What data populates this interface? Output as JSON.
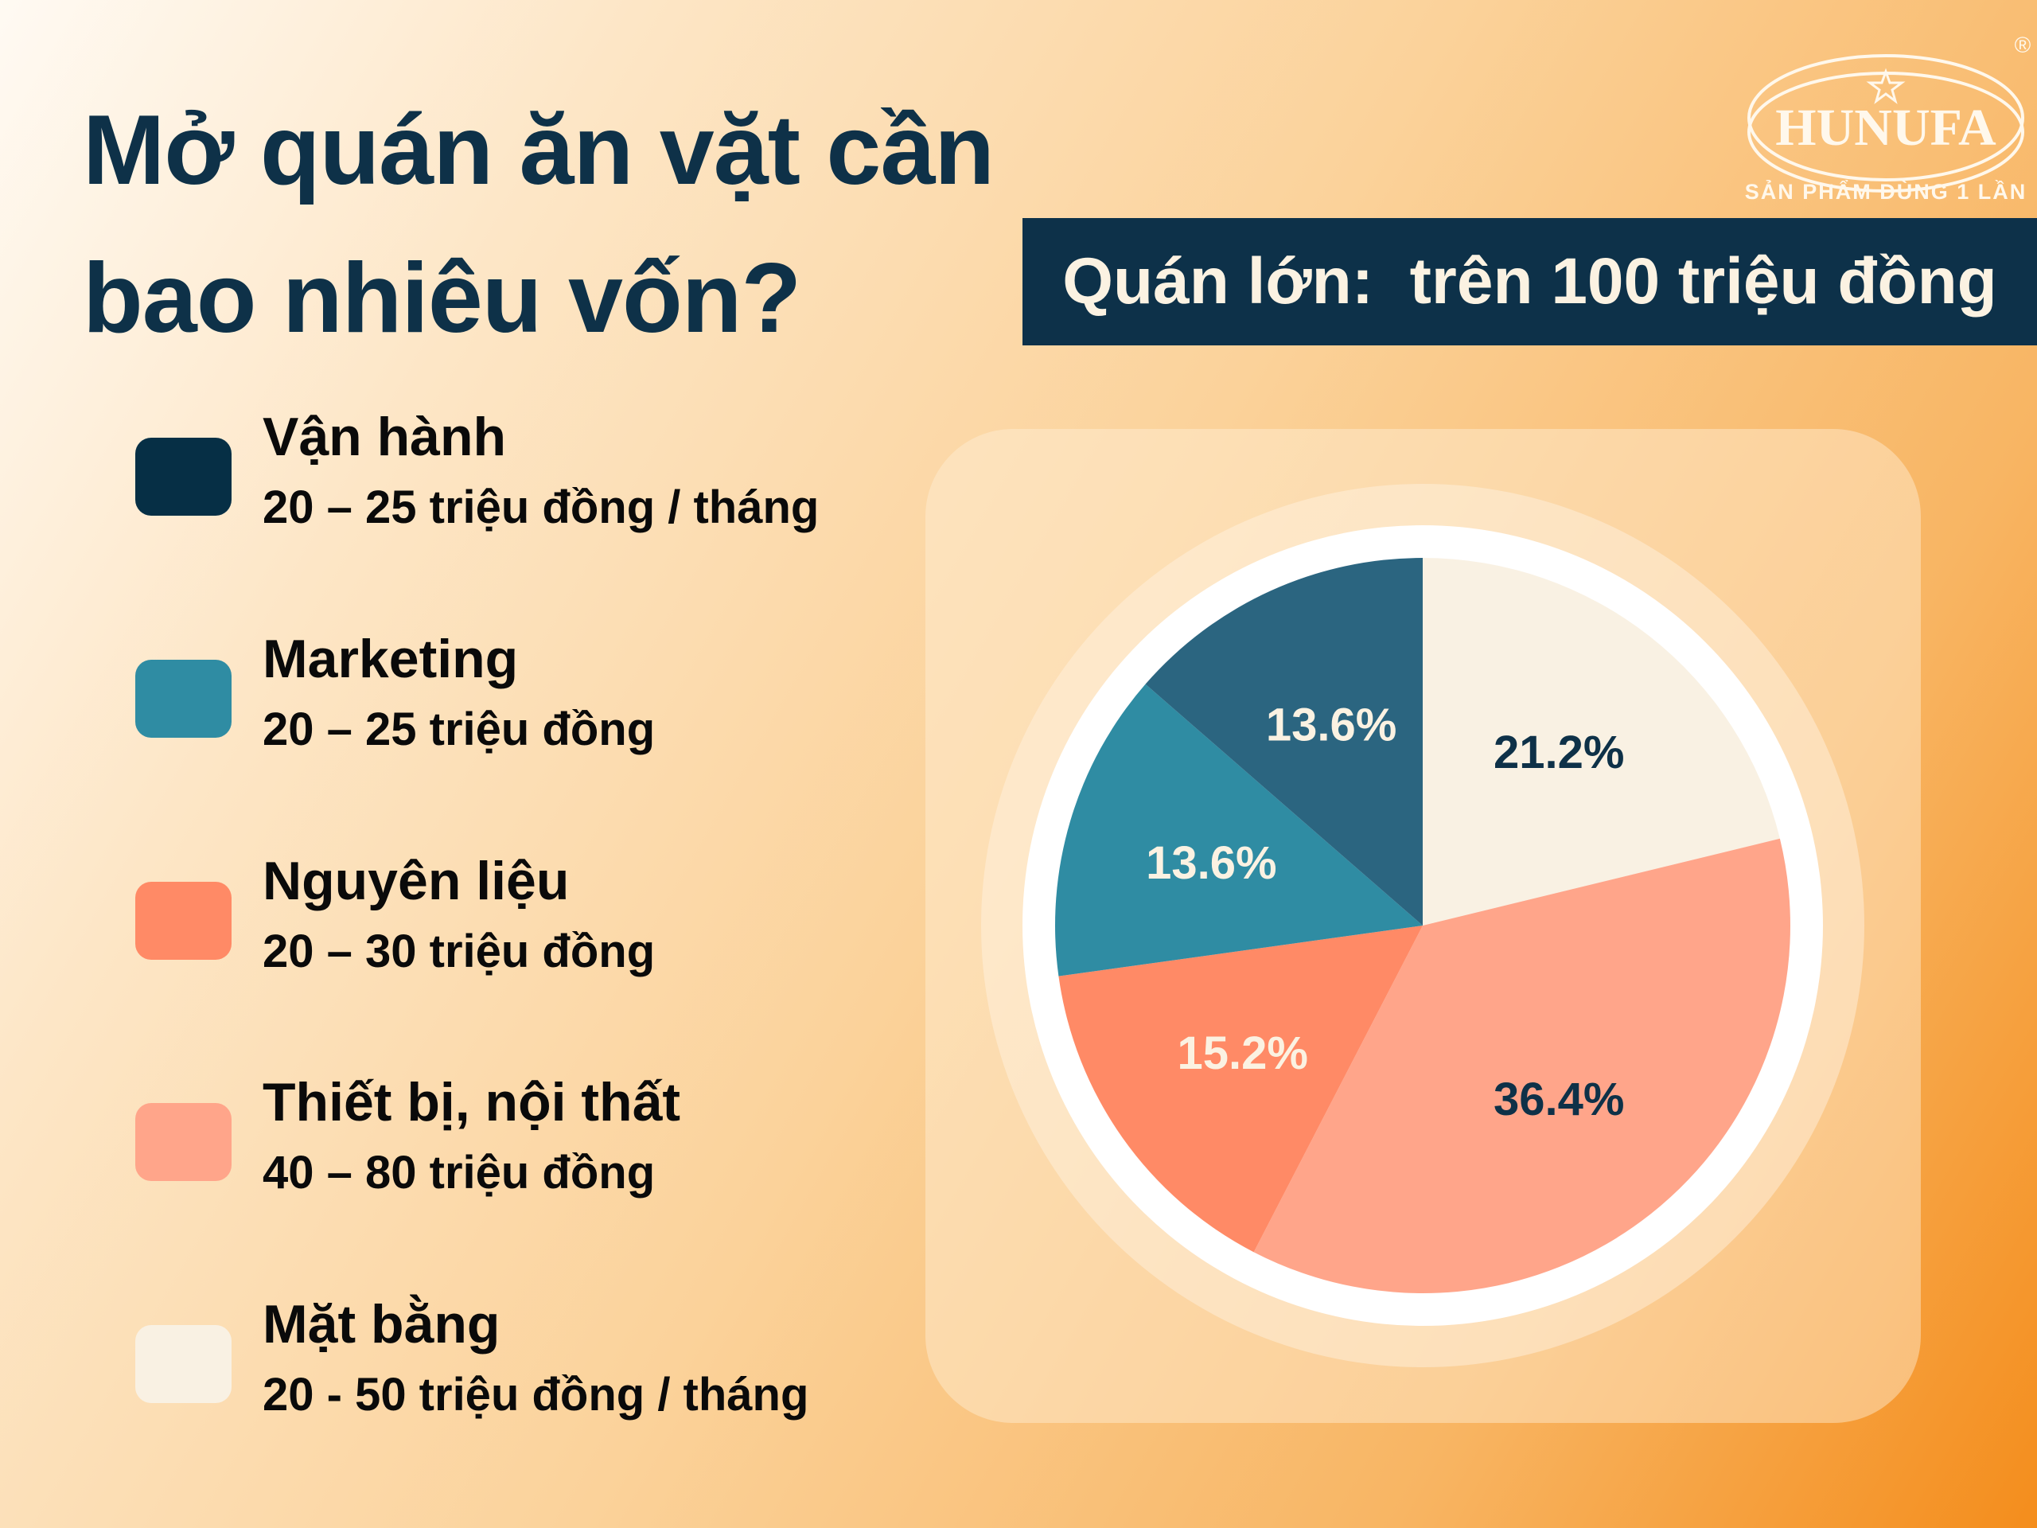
{
  "header": {
    "title_line1": "Mở quán ăn vặt cần",
    "title_line2": "bao nhiêu vốn?",
    "banner": "Quán lớn:  trên 100 triệu đồng"
  },
  "logo": {
    "brand": "HUNUFA",
    "registered": "®",
    "tagline": "SẢN PHẨM DÙNG 1 LẦN"
  },
  "legend": [
    {
      "label": "Vận hành",
      "value": "20 – 25 triệu đồng / tháng",
      "color": "#062f45"
    },
    {
      "label": "Marketing",
      "value": "20 – 25 triệu đồng",
      "color": "#2f8ca3"
    },
    {
      "label": "Nguyên liệu",
      "value": "20 – 30 triệu đồng",
      "color": "#ff8a66"
    },
    {
      "label": "Thiết bị, nội thất",
      "value": "40 – 80 triệu đồng",
      "color": "#ffa58a"
    },
    {
      "label": "Mặt bằng",
      "value": "20 - 50 triệu đồng / tháng",
      "color": "#f9f1e3"
    }
  ],
  "colors": {
    "title": "#0e3148",
    "banner_bg": "#0d3149",
    "banner_text": "#fbf2e2"
  },
  "chart_data": {
    "type": "pie",
    "title": "Quán lớn: trên 100 triệu đồng",
    "categories": [
      "Mặt bằng",
      "Thiết bị, nội thất",
      "Nguyên liệu",
      "Marketing",
      "Vận hành"
    ],
    "values": [
      21.2,
      36.4,
      15.2,
      13.6,
      13.6
    ],
    "labels": [
      "21.2%",
      "36.4%",
      "15.2%",
      "13.6%",
      "13.6%"
    ],
    "colors": [
      "#f9f1e3",
      "#ffa58a",
      "#ff8a66",
      "#2f8ca3",
      "#2b6580"
    ],
    "label_colors": [
      "#0e3148",
      "#0e3148",
      "#fbf2e2",
      "#fbf2e2",
      "#fbf2e2"
    ],
    "start_angle_deg": 0,
    "direction": "clockwise",
    "legend_position": "left"
  }
}
